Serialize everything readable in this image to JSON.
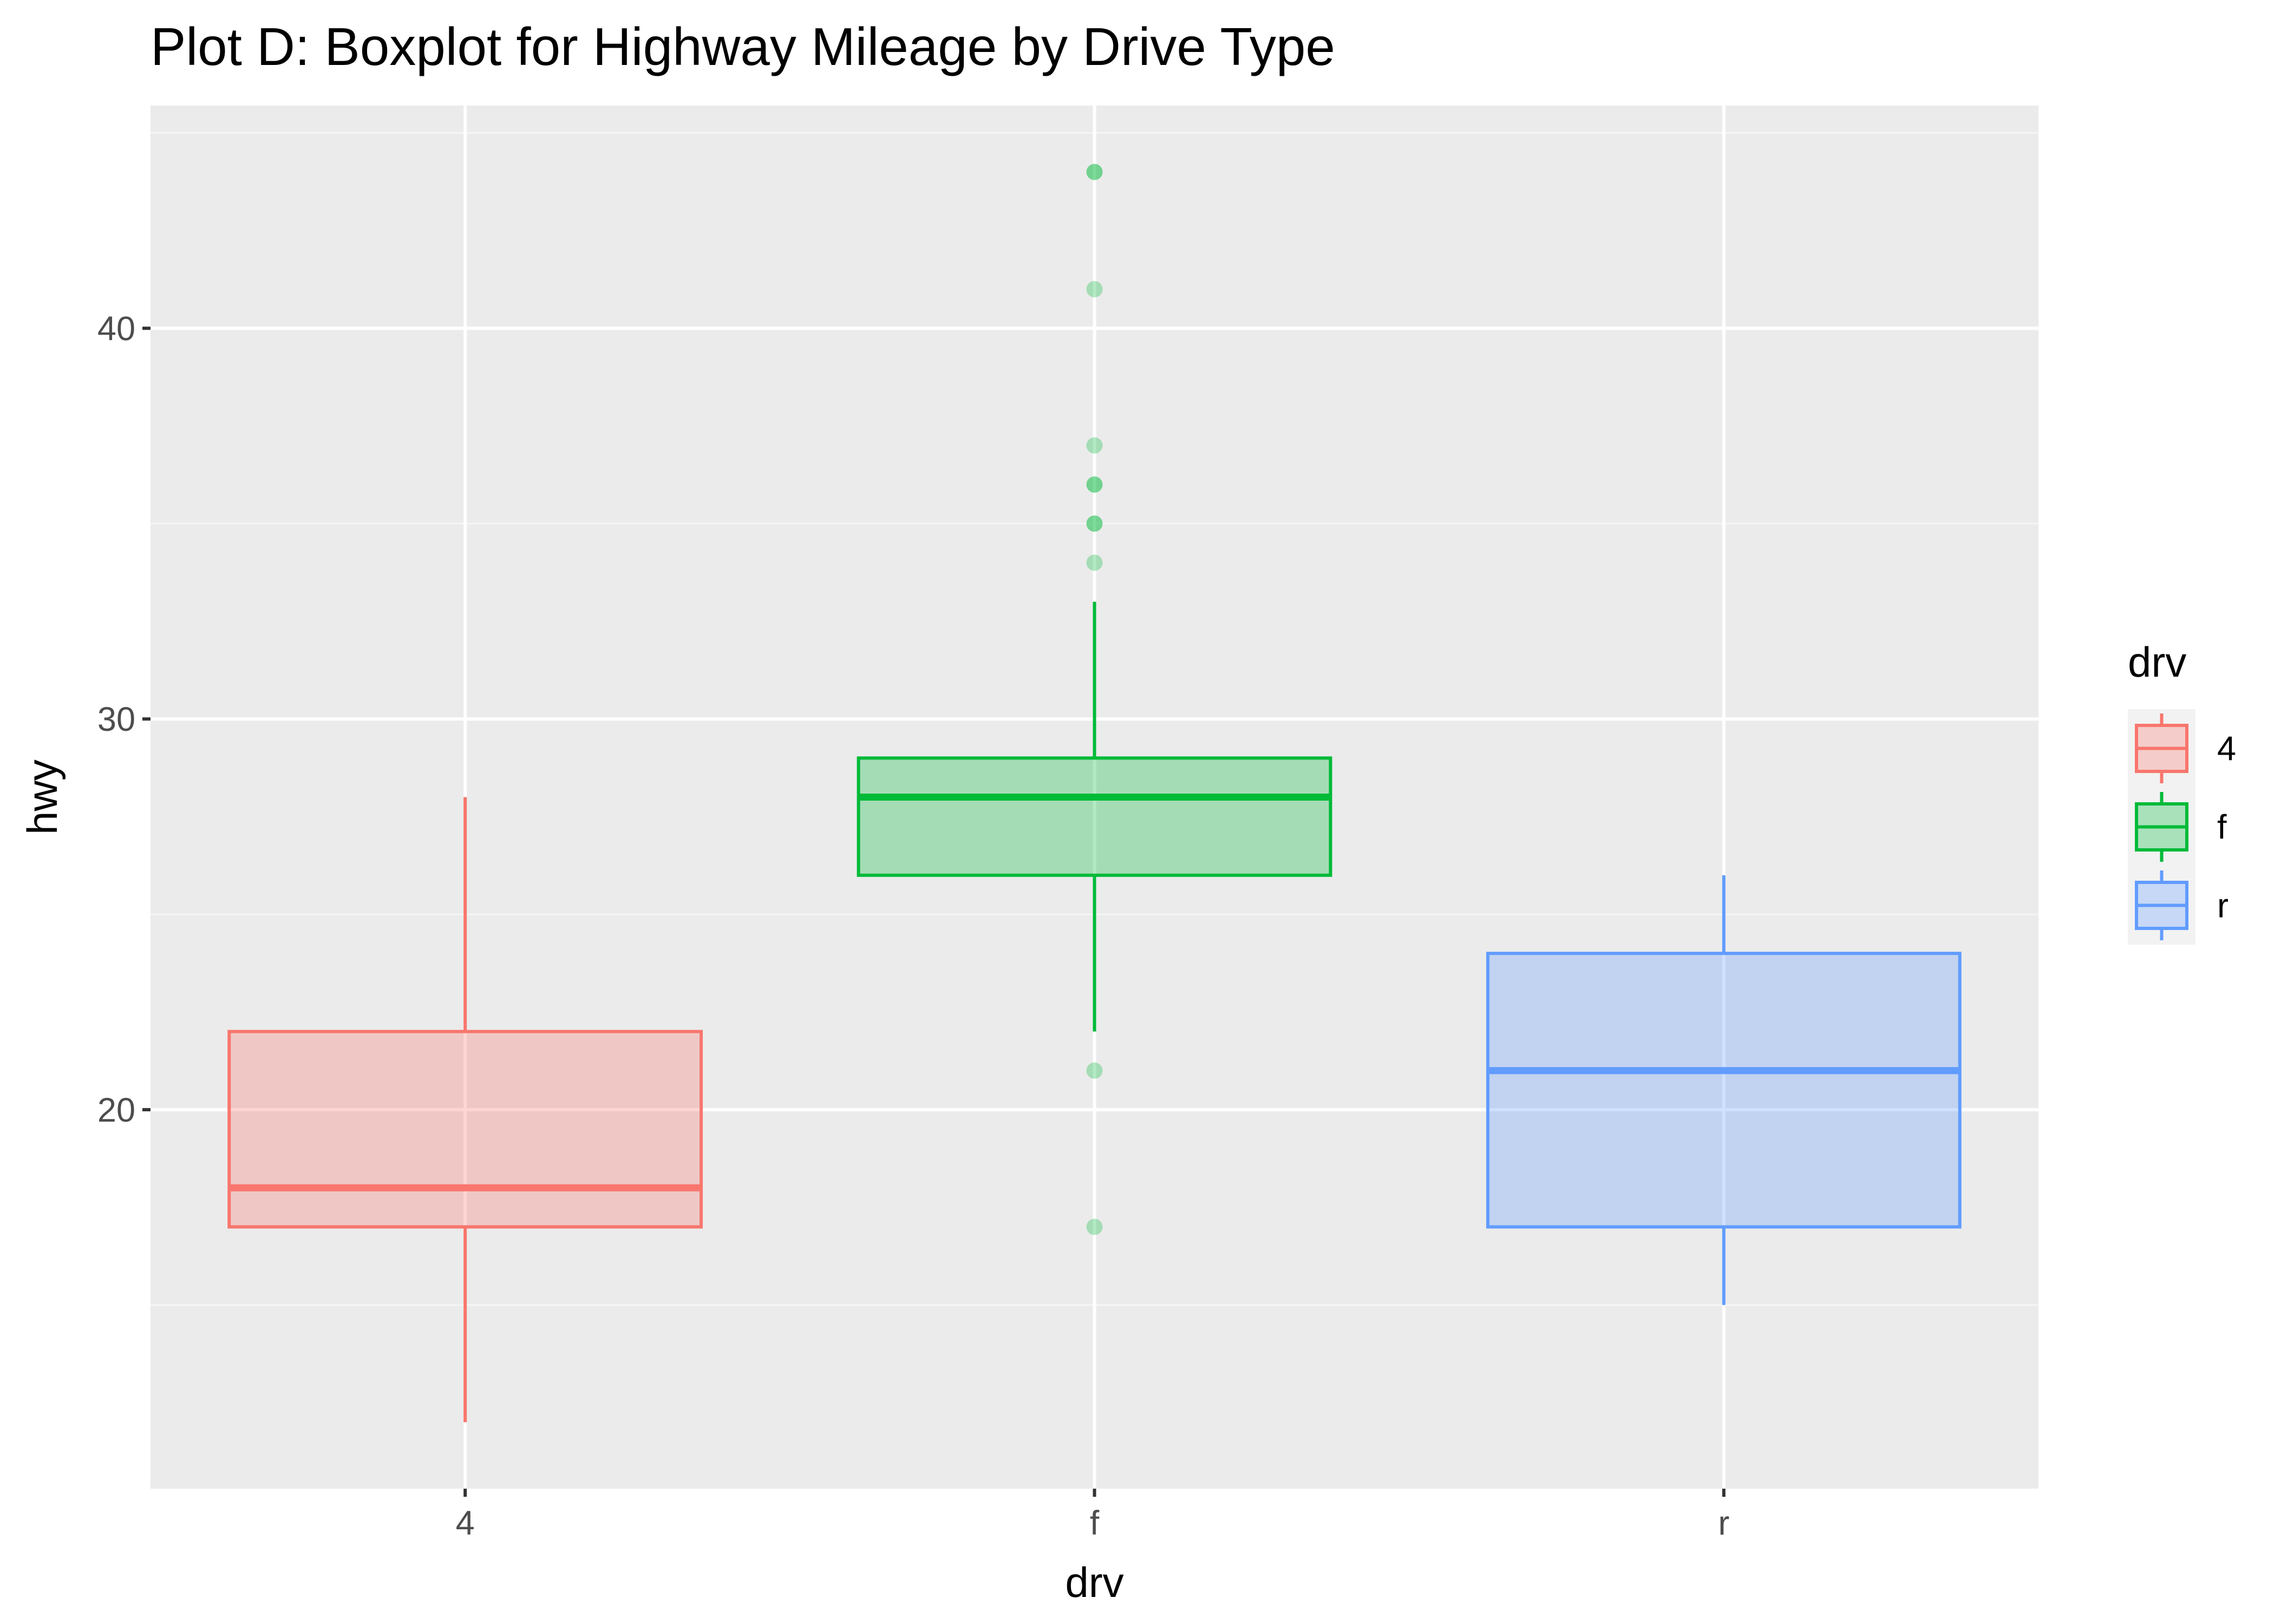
{
  "chart_data": {
    "type": "boxplot",
    "title": "Plot D: Boxplot for Highway Mileage by Drive Type",
    "xlabel": "drv",
    "ylabel": "hwy",
    "ylim": [
      10.3,
      45.7
    ],
    "y_ticks": [
      20,
      30,
      40
    ],
    "y_minor_ticks": [
      15,
      25,
      35,
      45
    ],
    "grid": true,
    "legend_position": "right",
    "legend_title": "drv",
    "categories": [
      "4",
      "f",
      "r"
    ],
    "series": [
      {
        "name": "4",
        "color": "#F8766D",
        "fill": "#F8766D",
        "fill_opacity": 0.3,
        "min": 12,
        "q1": 17,
        "median": 18,
        "q3": 22,
        "max": 28,
        "outliers": []
      },
      {
        "name": "f",
        "color": "#00BA38",
        "fill": "#00BA38",
        "fill_opacity": 0.3,
        "min": 22,
        "q1": 26,
        "median": 28,
        "q3": 29,
        "max": 33,
        "outliers": [
          44,
          44,
          41,
          37,
          36,
          36,
          35,
          35,
          34,
          21,
          17
        ]
      },
      {
        "name": "r",
        "color": "#619CFF",
        "fill": "#619CFF",
        "fill_opacity": 0.3,
        "min": 15,
        "q1": 17,
        "median": 21,
        "q3": 24,
        "max": 26,
        "outliers": []
      }
    ],
    "colors": {
      "panel_background": "#EBEBEB",
      "grid_major": "#FFFFFF",
      "grid_minor": "#F5F5F5",
      "axis_text": "#4D4D4D",
      "axis_title": "#000000",
      "legend_key_background": "#F2F2F2"
    }
  }
}
